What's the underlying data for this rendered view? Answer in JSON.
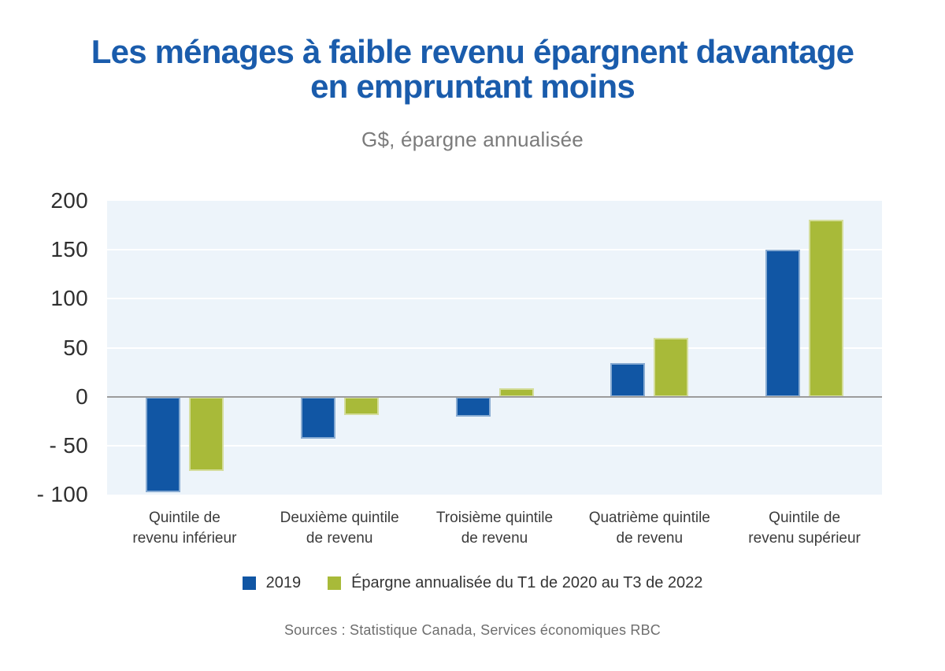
{
  "title_lines": [
    "Les ménages à faible revenu épargnent davantage",
    "en empruntant moins"
  ],
  "source_note": "Sources : Statistique Canada, Services économiques RBC",
  "colors": {
    "title": "#1a5cac",
    "series_2019": "#1156a4",
    "series_epargne": "#a8ba39",
    "plot_background": "#edf4fa",
    "gridline": "#ffffff",
    "zero_line": "#9c9c9c"
  },
  "chart_data": {
    "type": "bar",
    "title": "Les ménages à faible revenu épargnent davantage en empruntant moins",
    "subtitle": "G$, épargne annualisée",
    "ylabel": "G$, épargne annualisée",
    "categories": [
      "Quintile de\nrevenu inférieur",
      "Deuxième quintile\nde revenu",
      "Troisième quintile\nde revenu",
      "Quatrième quintile\nde revenu",
      "Quintile de\nrevenu supérieur"
    ],
    "series": [
      {
        "name": "2019",
        "color": "#1156a4",
        "values": [
          -98,
          -43,
          -20,
          34,
          150
        ]
      },
      {
        "name": "Épargne annualisée du T1 de 2020 au T3 de 2022",
        "color": "#a8ba39",
        "values": [
          -76,
          -19,
          9,
          60,
          181
        ]
      }
    ],
    "ylim": [
      -100,
      200
    ],
    "yticks": [
      200,
      150,
      100,
      50,
      0,
      -50,
      -100
    ],
    "ytick_labels": [
      "200",
      "150",
      "100",
      "50",
      "0",
      "- 50",
      "- 100"
    ],
    "grid": true,
    "legend_position": "bottom"
  }
}
